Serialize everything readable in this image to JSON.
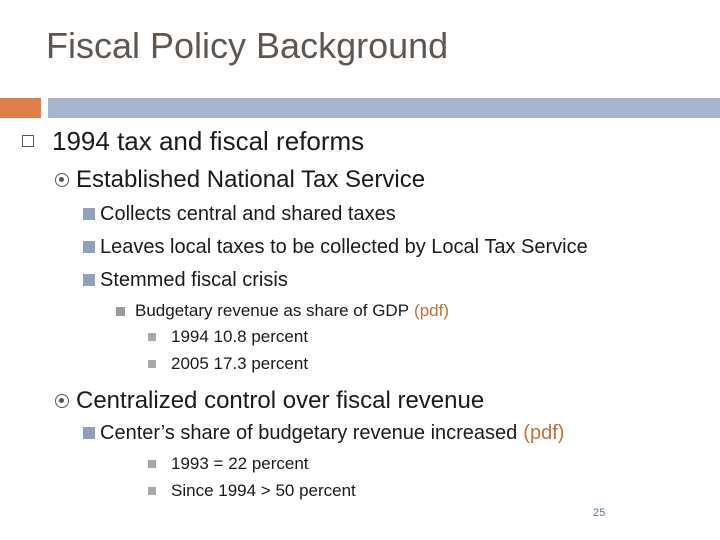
{
  "slide": {
    "title": "Fiscal Policy Background",
    "page_number": "25"
  },
  "content": {
    "level1": "1994 tax and fiscal reforms",
    "established": "Established National Tax Service",
    "collects": "Collects central and shared taxes",
    "leaves": "Leaves local taxes to be collected by Local Tax Service",
    "stemmed": "Stemmed fiscal crisis",
    "budgetary_text": "Budgetary revenue as share of GDP",
    "budgetary_link": "(pdf)",
    "y1994": "1994  10.8 percent",
    "y2005": "2005  17.3 percent",
    "centralized": "Centralized control over fiscal revenue",
    "center_text": "Center’s share of budgetary revenue increased",
    "center_link": "(pdf)",
    "y1993": "1993  = 22 percent",
    "since1994": "Since 1994 > 50 percent"
  },
  "colors": {
    "title": "#5f5650",
    "accent_orange": "#dd8047",
    "accent_blue": "#a5b6cc",
    "link": "#c0703a"
  }
}
